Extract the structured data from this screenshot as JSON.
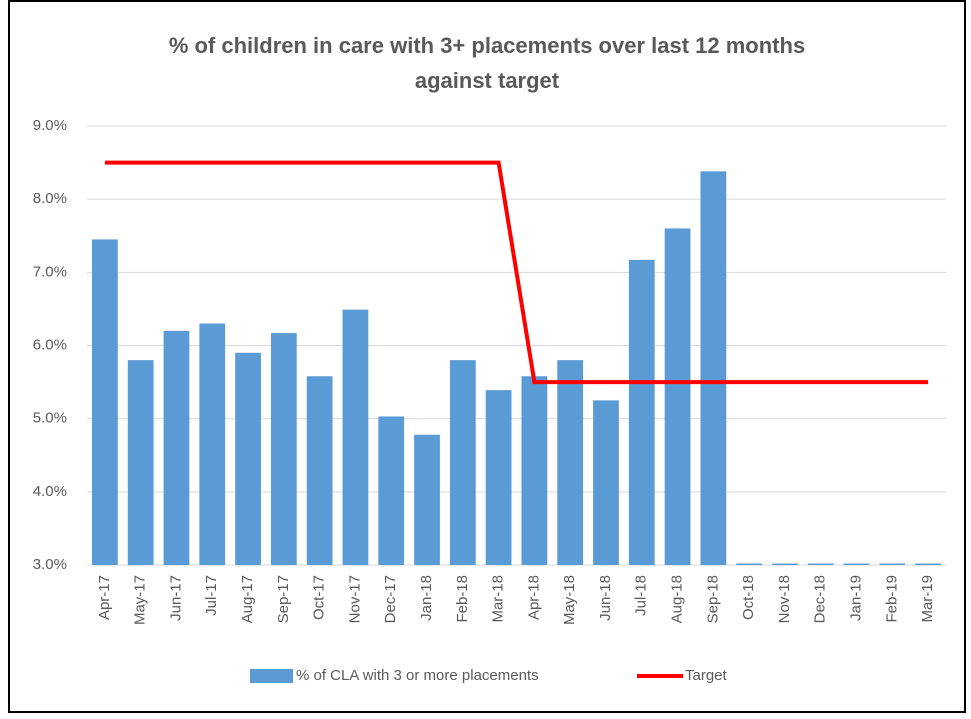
{
  "chart_data": {
    "type": "bar",
    "title": [
      "% of children in care with 3+ placements over last 12 months",
      "against target"
    ],
    "categories": [
      "Apr-17",
      "May-17",
      "Jun-17",
      "Jul-17",
      "Aug-17",
      "Sep-17",
      "Oct-17",
      "Nov-17",
      "Dec-17",
      "Jan-18",
      "Feb-18",
      "Mar-18",
      "Apr-18",
      "May-18",
      "Jun-18",
      "Jul-18",
      "Aug-18",
      "Sep-18",
      "Oct-18",
      "Nov-18",
      "Dec-18",
      "Jan-19",
      "Feb-19",
      "Mar-19"
    ],
    "series": [
      {
        "name": "% of CLA with 3 or more placements",
        "type": "bar",
        "color": "#5b9bd5",
        "values": [
          7.45,
          5.8,
          6.2,
          6.3,
          5.9,
          6.17,
          5.58,
          6.49,
          5.03,
          4.78,
          5.8,
          5.39,
          5.58,
          5.8,
          5.25,
          7.17,
          7.6,
          8.38,
          3.0,
          3.0,
          3.0,
          3.0,
          3.0,
          3.0
        ]
      },
      {
        "name": "Target",
        "type": "line",
        "color": "#ff0000",
        "values": [
          8.5,
          8.5,
          8.5,
          8.5,
          8.5,
          8.5,
          8.5,
          8.5,
          8.5,
          8.5,
          8.5,
          8.5,
          5.5,
          5.5,
          5.5,
          5.5,
          5.5,
          5.5,
          5.5,
          5.5,
          5.5,
          5.5,
          5.5,
          5.5
        ]
      }
    ],
    "ylim": [
      3,
      9
    ],
    "yticks": [
      {
        "value": 3,
        "label": "3.0%"
      },
      {
        "value": 4,
        "label": "4.0%"
      },
      {
        "value": 5,
        "label": "5.0%"
      },
      {
        "value": 6,
        "label": "6.0%"
      },
      {
        "value": 7,
        "label": "7.0%"
      },
      {
        "value": 8,
        "label": "8.0%"
      },
      {
        "value": 9,
        "label": "9.0%"
      }
    ],
    "grid": true,
    "legend": "bottom"
  }
}
